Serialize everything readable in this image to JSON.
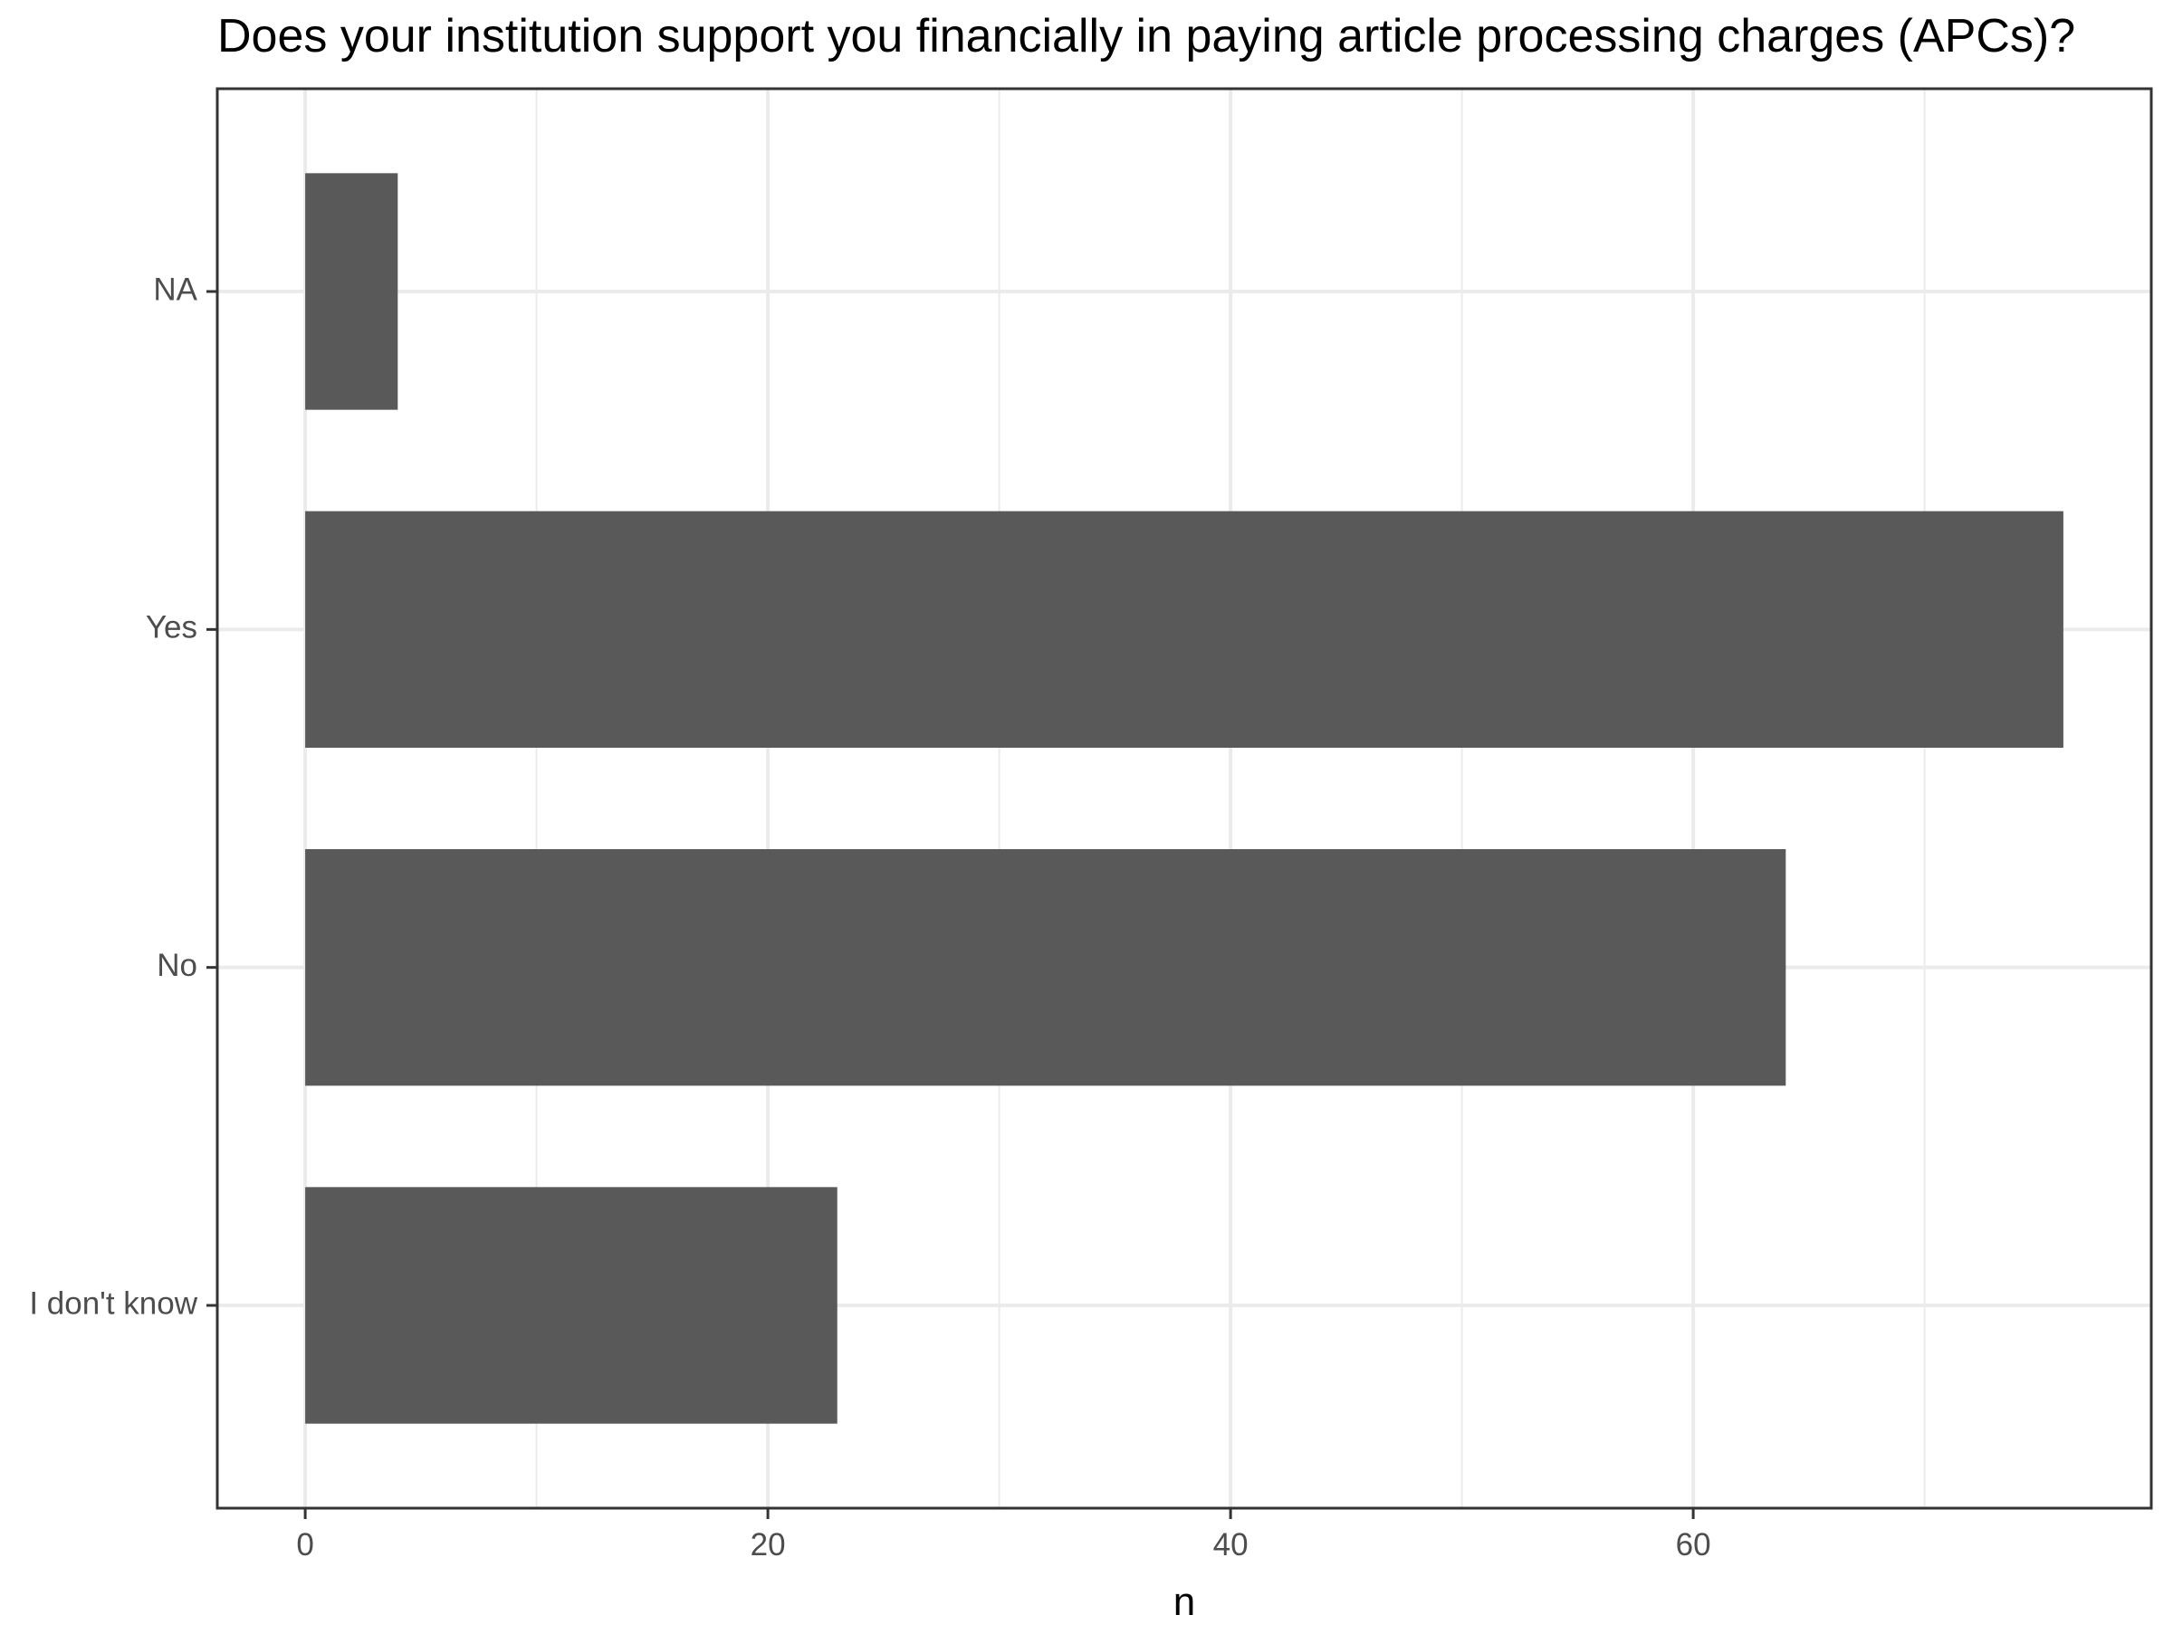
{
  "chart_data": {
    "type": "bar",
    "orientation": "horizontal",
    "title": "Does your institution support you financially in paying article processing charges (APCs)?",
    "xlabel": "n",
    "ylabel": "",
    "categories": [
      "I don't know",
      "No",
      "Yes",
      "NA"
    ],
    "values": [
      23,
      64,
      76,
      4
    ],
    "xlim": [
      -3.8,
      79.8
    ],
    "x_ticks": [
      0,
      20,
      40,
      60
    ],
    "grid": true,
    "bar_color": "#595959",
    "grid_color": "#ebebeb",
    "panel_border_color": "#333333"
  }
}
